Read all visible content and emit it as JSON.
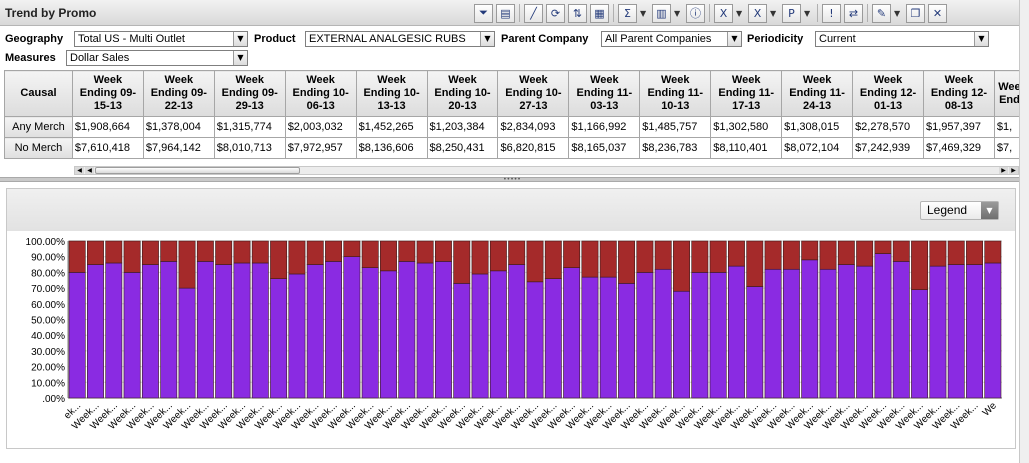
{
  "window": {
    "title": "Trend by Promo"
  },
  "toolbar": {
    "buttons": [
      {
        "name": "filter-icon",
        "glyph": "⏷"
      },
      {
        "name": "grid-view-icon",
        "glyph": "▤"
      },
      {
        "name": "chart-view-icon",
        "glyph": "╱"
      },
      {
        "name": "refresh-icon",
        "glyph": "⟳"
      },
      {
        "name": "sort-icon",
        "glyph": "⇅"
      },
      {
        "name": "calc-member-icon",
        "glyph": "▦"
      },
      {
        "name": "sum-icon",
        "glyph": "Σ",
        "drop": true
      },
      {
        "name": "layout-icon",
        "glyph": "▥",
        "drop": true
      },
      {
        "name": "info-icon",
        "glyph": "ⓘ"
      },
      {
        "name": "export-excel-icon",
        "glyph": "X",
        "drop": true
      },
      {
        "name": "export-excel-data-icon",
        "glyph": "X",
        "drop": true
      },
      {
        "name": "export-ppt-icon",
        "glyph": "P",
        "drop": true
      },
      {
        "name": "alert-icon",
        "glyph": "!"
      },
      {
        "name": "compare-icon",
        "glyph": "⇄"
      },
      {
        "name": "edit-icon",
        "glyph": "✎",
        "drop": true
      },
      {
        "name": "copy-icon",
        "glyph": "❐"
      },
      {
        "name": "tools-icon",
        "glyph": "✕"
      }
    ]
  },
  "filters": {
    "geography": {
      "label": "Geography",
      "value": "Total US - Multi Outlet"
    },
    "product": {
      "label": "Product",
      "value": "EXTERNAL ANALGESIC RUBS"
    },
    "parent_company": {
      "label": "Parent Company",
      "value": "All Parent Companies"
    },
    "periodicity": {
      "label": "Periodicity",
      "value": "Current"
    },
    "measures": {
      "label": "Measures",
      "value": "Dollar Sales"
    }
  },
  "grid": {
    "corner_label": "Causal",
    "columns": [
      [
        "Week",
        "Ending 09-",
        "15-13"
      ],
      [
        "Week",
        "Ending 09-",
        "22-13"
      ],
      [
        "Week",
        "Ending 09-",
        "29-13"
      ],
      [
        "Week",
        "Ending 10-",
        "06-13"
      ],
      [
        "Week",
        "Ending 10-",
        "13-13"
      ],
      [
        "Week",
        "Ending 10-",
        "20-13"
      ],
      [
        "Week",
        "Ending 10-",
        "27-13"
      ],
      [
        "Week",
        "Ending 11-",
        "03-13"
      ],
      [
        "Week",
        "Ending 11-",
        "10-13"
      ],
      [
        "Week",
        "Ending 11-",
        "17-13"
      ],
      [
        "Week",
        "Ending 11-",
        "24-13"
      ],
      [
        "Week",
        "Ending 12-",
        "01-13"
      ],
      [
        "Week",
        "Ending 12-",
        "08-13"
      ],
      [
        "Wee",
        "End",
        ""
      ]
    ],
    "rows": [
      {
        "label": "Any Merch",
        "values": [
          "$1,908,664",
          "$1,378,004",
          "$1,315,774",
          "$2,003,032",
          "$1,452,265",
          "$1,203,384",
          "$2,834,093",
          "$1,166,992",
          "$1,485,757",
          "$1,302,580",
          "$1,308,015",
          "$2,278,570",
          "$1,957,397",
          "$1,"
        ]
      },
      {
        "label": "No Merch",
        "values": [
          "$7,610,418",
          "$7,964,142",
          "$8,010,713",
          "$7,972,957",
          "$8,136,606",
          "$8,250,431",
          "$6,820,815",
          "$8,165,037",
          "$8,236,783",
          "$8,110,401",
          "$8,072,104",
          "$7,242,939",
          "$7,469,329",
          "$7,"
        ]
      }
    ]
  },
  "legend": {
    "label": "Legend"
  },
  "chart_data": {
    "type": "bar",
    "stacked": true,
    "ylim": [
      0,
      100
    ],
    "yticks": [
      "100.00%",
      "90.00%",
      "80.00%",
      "70.00%",
      "60.00%",
      "50.00%",
      "40.00%",
      "30.00%",
      "20.00%",
      "10.00%",
      ".00%"
    ],
    "category_label": "Week...",
    "first_category_label": "ek...",
    "last_category_label": "We",
    "colors": {
      "purple": "#8a2be2",
      "red": "#a52a2a",
      "grid": "#d8d8d8"
    },
    "series": [
      {
        "color": "purple",
        "values": [
          80,
          85,
          86,
          80,
          85,
          87,
          70,
          87,
          85,
          86,
          86,
          76,
          79,
          85,
          87,
          90,
          83,
          81,
          87,
          86,
          87,
          73,
          79,
          81,
          85,
          74,
          76,
          83,
          77,
          77,
          73,
          80,
          82,
          68,
          80,
          80,
          84,
          71,
          82,
          82,
          88,
          82,
          85,
          84,
          92,
          87,
          69,
          84,
          85,
          85,
          86
        ]
      },
      {
        "color": "red",
        "values": [
          20,
          15,
          14,
          20,
          15,
          13,
          30,
          13,
          15,
          14,
          14,
          24,
          21,
          15,
          13,
          10,
          17,
          19,
          13,
          14,
          13,
          27,
          21,
          19,
          15,
          26,
          24,
          17,
          23,
          23,
          27,
          20,
          18,
          32,
          20,
          20,
          16,
          29,
          18,
          18,
          12,
          18,
          15,
          16,
          8,
          13,
          31,
          16,
          15,
          15,
          14
        ]
      }
    ]
  }
}
